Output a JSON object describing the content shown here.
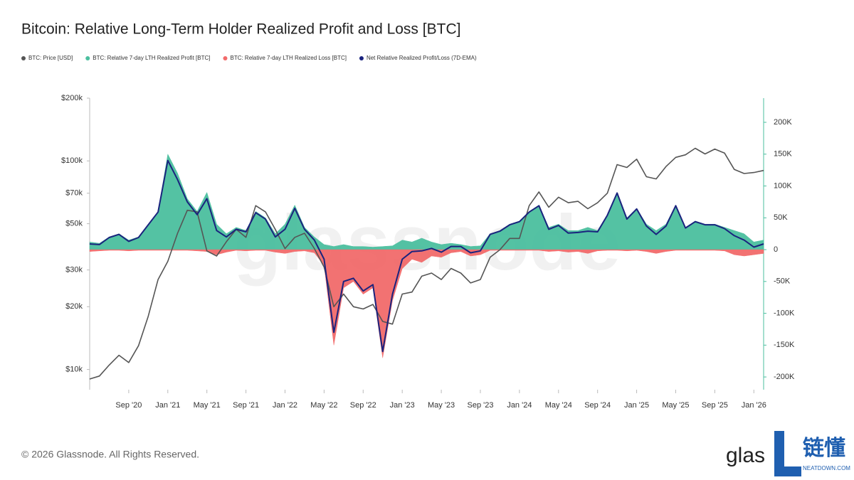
{
  "chart_data": {
    "type": "line",
    "title": "Bitcoin: Relative Long-Term Holder Realized Profit and Loss [BTC]",
    "watermark": "glassnode",
    "footer": "© 2026 Glassnode. All Rights Reserved.",
    "logo": "glas",
    "brand": "链懂",
    "brand_url": "NEATDOWN.COM",
    "log_scale": true,
    "xlim": [
      "2020-05",
      "2026-02"
    ],
    "xticks": [
      {
        "value": "2020-09",
        "label": "Sep '20"
      },
      {
        "value": "2021-01",
        "label": "Jan '21"
      },
      {
        "value": "2021-05",
        "label": "May '21"
      },
      {
        "value": "2021-09",
        "label": "Sep '21"
      },
      {
        "value": "2022-01",
        "label": "Jan '22"
      },
      {
        "value": "2022-05",
        "label": "May '22"
      },
      {
        "value": "2022-09",
        "label": "Sep '22"
      },
      {
        "value": "2023-01",
        "label": "Jan '23"
      },
      {
        "value": "2023-05",
        "label": "May '23"
      },
      {
        "value": "2023-09",
        "label": "Sep '23"
      },
      {
        "value": "2024-01",
        "label": "Jan '24"
      },
      {
        "value": "2024-05",
        "label": "May '24"
      },
      {
        "value": "2024-09",
        "label": "Sep '24"
      },
      {
        "value": "2025-01",
        "label": "Jan '25"
      },
      {
        "value": "2025-05",
        "label": "May '25"
      },
      {
        "value": "2025-09",
        "label": "Sep '25"
      },
      {
        "value": "2026-01",
        "label": "Jan '26"
      }
    ],
    "ylim": [
      8000,
      200000
    ],
    "yticks": [
      {
        "value": 200000,
        "label": "$200k"
      },
      {
        "value": 100000,
        "label": "$100k"
      },
      {
        "value": 70000,
        "label": "$70k"
      },
      {
        "value": 50000,
        "label": "$50k"
      },
      {
        "value": 30000,
        "label": "$30k"
      },
      {
        "value": 20000,
        "label": "$20k"
      },
      {
        "value": 10000,
        "label": "$10k"
      }
    ],
    "y2lim": [
      -220000,
      238000
    ],
    "y2ticks": [
      {
        "value": 200000,
        "label": "200K"
      },
      {
        "value": 150000,
        "label": "150K"
      },
      {
        "value": 100000,
        "label": "100K"
      },
      {
        "value": 50000,
        "label": "50K"
      },
      0,
      {
        "value": -50000,
        "label": "-50K"
      },
      {
        "value": -100000,
        "label": "-100K"
      },
      {
        "value": -150000,
        "label": "-150K"
      },
      {
        "value": -200000,
        "label": "-200K"
      }
    ],
    "x": [
      "2020-05",
      "2020-06",
      "2020-07",
      "2020-08",
      "2020-09",
      "2020-10",
      "2020-11",
      "2020-12",
      "2021-01",
      "2021-02",
      "2021-03",
      "2021-04",
      "2021-05",
      "2021-06",
      "2021-07",
      "2021-08",
      "2021-09",
      "2021-10",
      "2021-11",
      "2021-12",
      "2022-01",
      "2022-02",
      "2022-03",
      "2022-04",
      "2022-05",
      "2022-06",
      "2022-07",
      "2022-08",
      "2022-09",
      "2022-10",
      "2022-11",
      "2022-12",
      "2023-01",
      "2023-02",
      "2023-03",
      "2023-04",
      "2023-05",
      "2023-06",
      "2023-07",
      "2023-08",
      "2023-09",
      "2023-10",
      "2023-11",
      "2023-12",
      "2024-01",
      "2024-02",
      "2024-03",
      "2024-04",
      "2024-05",
      "2024-06",
      "2024-07",
      "2024-08",
      "2024-09",
      "2024-10",
      "2024-11",
      "2024-12",
      "2025-01",
      "2025-02",
      "2025-03",
      "2025-04",
      "2025-05",
      "2025-06",
      "2025-07",
      "2025-08",
      "2025-09",
      "2025-10",
      "2025-11",
      "2025-12",
      "2026-01",
      "2026-02"
    ],
    "series": [
      {
        "name": "BTC: Price [USD]",
        "color": "#555555",
        "kind": "line",
        "axis": "y",
        "values": [
          9000,
          9300,
          10500,
          11700,
          10800,
          13000,
          18000,
          27000,
          33000,
          45000,
          58000,
          57000,
          37000,
          35000,
          41000,
          47000,
          43000,
          61000,
          57000,
          47000,
          38000,
          43000,
          45000,
          38000,
          31000,
          20000,
          23000,
          20000,
          19500,
          20500,
          17000,
          16500,
          23000,
          23500,
          28000,
          29000,
          27000,
          30500,
          29000,
          26000,
          27000,
          34500,
          37500,
          42500,
          42500,
          61000,
          71000,
          60000,
          67000,
          63000,
          64000,
          59000,
          63000,
          70000,
          96000,
          93000,
          102000,
          84000,
          82000,
          94000,
          104000,
          107000,
          115000,
          108000,
          114000,
          109000,
          91000,
          87000,
          88000,
          90000
        ]
      },
      {
        "name": "BTC: Relative 7-day LTH Realized Profit [BTC]",
        "color": "#4bbf9f",
        "kind": "area",
        "axis": "y2",
        "values": [
          12000,
          10000,
          20000,
          25000,
          15000,
          20000,
          40000,
          60000,
          150000,
          120000,
          80000,
          60000,
          90000,
          40000,
          25000,
          35000,
          30000,
          60000,
          50000,
          25000,
          40000,
          70000,
          35000,
          20000,
          8000,
          5000,
          8000,
          5000,
          5000,
          4000,
          5000,
          6000,
          15000,
          12000,
          18000,
          12000,
          8000,
          10000,
          8000,
          5000,
          6000,
          25000,
          30000,
          40000,
          45000,
          60000,
          70000,
          35000,
          40000,
          30000,
          30000,
          35000,
          30000,
          55000,
          90000,
          50000,
          65000,
          40000,
          30000,
          40000,
          70000,
          35000,
          45000,
          40000,
          40000,
          35000,
          30000,
          25000,
          12000,
          15000
        ]
      },
      {
        "name": "BTC: Relative 7-day LTH Realized Loss [BTC]",
        "color": "#f26b6b",
        "kind": "area",
        "axis": "y2",
        "values": [
          -3000,
          -2000,
          -1000,
          -1000,
          -2000,
          -1000,
          -1000,
          -1000,
          -1000,
          -1000,
          -1000,
          -2000,
          -3000,
          -8000,
          -4000,
          -1000,
          -2000,
          -1000,
          -1000,
          -4000,
          -6000,
          -3000,
          -2000,
          -5000,
          -25000,
          -150000,
          -60000,
          -50000,
          -70000,
          -60000,
          -170000,
          -80000,
          -30000,
          -15000,
          -20000,
          -10000,
          -12000,
          -5000,
          -3000,
          -10000,
          -8000,
          -1000,
          -1000,
          -1000,
          -1000,
          -1000,
          -1000,
          -3000,
          -2000,
          -4000,
          -3000,
          -6000,
          -2000,
          -1000,
          -1000,
          -2000,
          -1000,
          -3000,
          -6000,
          -3000,
          -1000,
          -1000,
          -1000,
          -1000,
          -1000,
          -2000,
          -8000,
          -10000,
          -8000,
          -6000
        ]
      },
      {
        "name": "Net Relative Realized Profit/Loss (7D-EMA)",
        "color": "#1a237e",
        "kind": "line",
        "axis": "y2",
        "values": [
          9000,
          8000,
          19000,
          24000,
          13000,
          19000,
          39000,
          59000,
          140000,
          110000,
          75000,
          55000,
          80000,
          30000,
          20000,
          32000,
          28000,
          58000,
          48000,
          20000,
          32000,
          65000,
          32000,
          15000,
          -15000,
          -130000,
          -50000,
          -45000,
          -65000,
          -55000,
          -160000,
          -70000,
          -15000,
          -3000,
          -2000,
          2000,
          -4000,
          5000,
          5000,
          -5000,
          -2000,
          24000,
          29000,
          39000,
          44000,
          59000,
          69000,
          32000,
          38000,
          26000,
          27000,
          29000,
          28000,
          54000,
          89000,
          48000,
          64000,
          37000,
          24000,
          37000,
          69000,
          34000,
          44000,
          39000,
          39000,
          33000,
          22000,
          15000,
          4000,
          9000
        ]
      }
    ]
  }
}
